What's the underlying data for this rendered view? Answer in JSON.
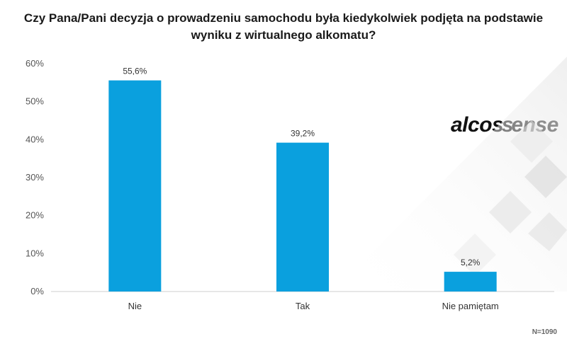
{
  "chart_data": {
    "type": "bar",
    "title": "Czy Pana/Pani decyzja o prowadzeniu samochodu była kiedykolwiek podjęta na podstawie wyniku z wirtualnego alkomatu?",
    "categories": [
      "Nie",
      "Tak",
      "Nie pamiętam"
    ],
    "values": [
      55.6,
      39.2,
      5.2
    ],
    "data_labels": [
      "55,6%",
      "39,2%",
      "5,2%"
    ],
    "yticks": [
      "0%",
      "10%",
      "20%",
      "30%",
      "40%",
      "50%",
      "60%"
    ],
    "ylim": [
      0,
      60
    ],
    "grid": false,
    "bar_color": "#0aa0de"
  },
  "logo": {
    "text": "alcosense"
  },
  "note": "N=1090"
}
